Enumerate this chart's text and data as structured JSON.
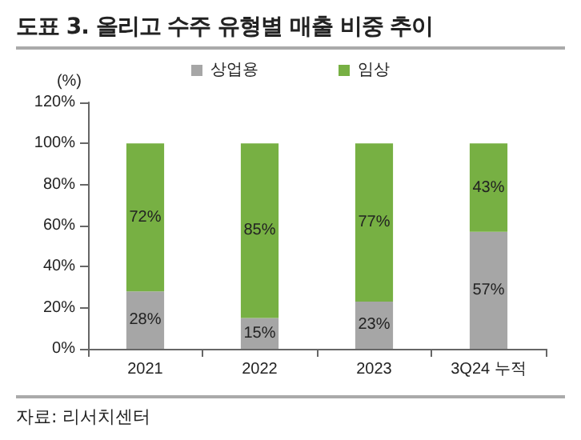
{
  "chart_data": {
    "type": "bar",
    "title": "도표 3. 올리고 수주 유형별 매출 비중 추이",
    "ylabel": "(%)",
    "annotations": [
      "자료: 리서치센터"
    ],
    "categories": [
      "2021",
      "2022",
      "2023",
      "3Q24 누적"
    ],
    "series": [
      {
        "name": "상업용",
        "color": "#a6a6a6",
        "values": [
          28,
          15,
          23,
          57
        ],
        "value_labels": [
          "28%",
          "15%",
          "23%",
          "57%"
        ]
      },
      {
        "name": "임상",
        "color": "#77b043",
        "values": [
          72,
          85,
          77,
          43
        ],
        "value_labels": [
          "72%",
          "85%",
          "77%",
          "43%"
        ]
      }
    ],
    "stacked": true,
    "ylim": [
      0,
      120
    ],
    "yticks": [
      {
        "value": 0,
        "label": "0%"
      },
      {
        "value": 20,
        "label": "20%"
      },
      {
        "value": 40,
        "label": "40%"
      },
      {
        "value": 60,
        "label": "60%"
      },
      {
        "value": 80,
        "label": "80%"
      },
      {
        "value": 100,
        "label": "100%"
      },
      {
        "value": 120,
        "label": "120%"
      }
    ],
    "legend": "top",
    "grid": false
  }
}
